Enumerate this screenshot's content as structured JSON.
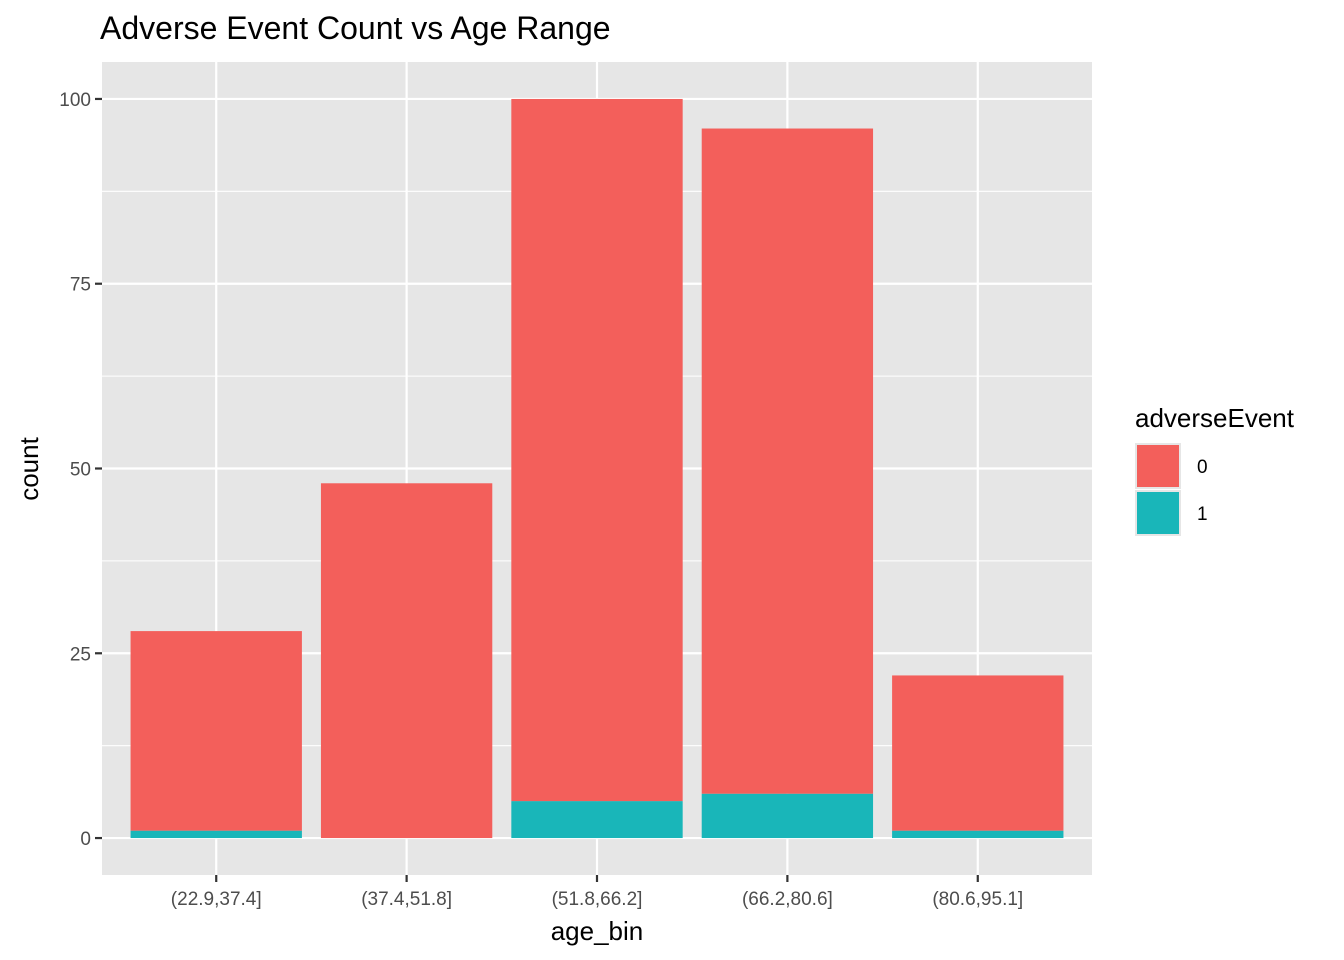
{
  "chart_data": {
    "type": "bar",
    "stacked": true,
    "title": "Adverse Event Count vs Age Range",
    "xlabel": "age_bin",
    "ylabel": "count",
    "categories": [
      "(22.9,37.4]",
      "(37.4,51.8]",
      "(51.8,66.2]",
      "(66.2,80.6]",
      "(80.6,95.1]"
    ],
    "series": [
      {
        "name": "0",
        "values": [
          27,
          48,
          95,
          90,
          21
        ],
        "color": "#f35f5b"
      },
      {
        "name": "1",
        "values": [
          1,
          0,
          5,
          6,
          1
        ],
        "color": "#19b6b9"
      }
    ],
    "ylim": [
      -5,
      105
    ],
    "yticks": [
      0,
      25,
      50,
      75,
      100
    ],
    "grid": true,
    "legend": {
      "title": "adverseEvent",
      "position": "right"
    },
    "panel_background": "#e6e6e6",
    "gridline_color": "#ffffff"
  }
}
